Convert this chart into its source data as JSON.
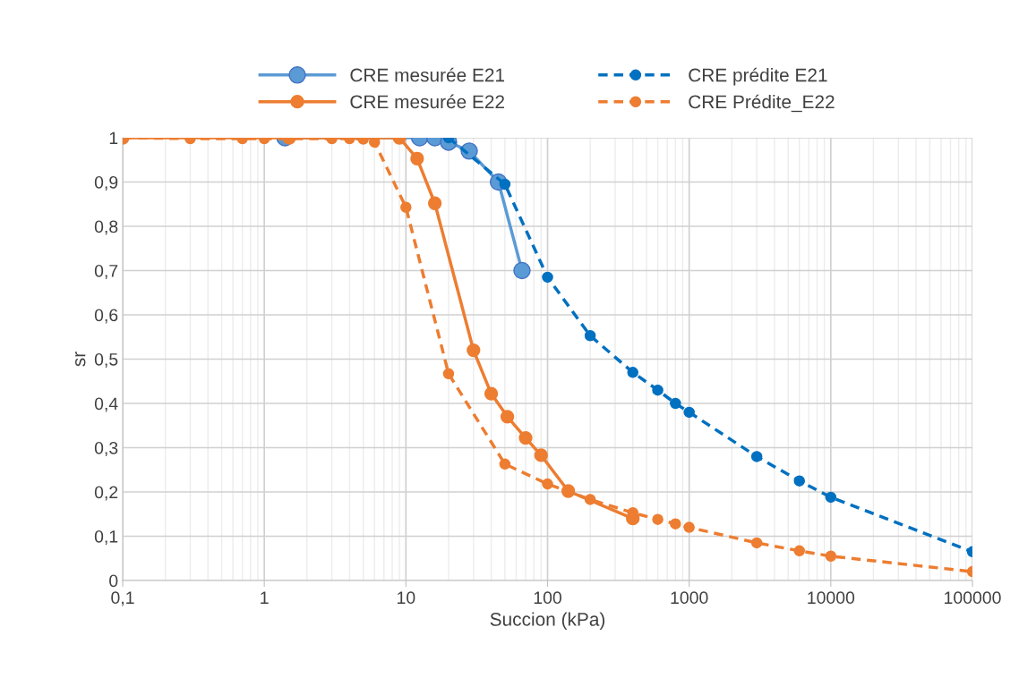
{
  "chart_data": {
    "type": "line",
    "xlabel": "Succion (kPa)",
    "ylabel": "sr",
    "log": "x",
    "grid": true,
    "legend": "top",
    "marker": "circle",
    "xlim": [
      0.1,
      100000
    ],
    "xticks": [
      {
        "value": 0.1,
        "label": "0,1"
      },
      1,
      10,
      100,
      1000,
      10000,
      100000
    ],
    "ylim": [
      0,
      1
    ],
    "yticks": [
      0,
      {
        "value": 0.1,
        "label": "0,1"
      },
      {
        "value": 0.2,
        "label": "0,2"
      },
      {
        "value": 0.3,
        "label": "0,3"
      },
      {
        "value": 0.4,
        "label": "0,4"
      },
      {
        "value": 0.5,
        "label": "0,5"
      },
      {
        "value": 0.6,
        "label": "0,6"
      },
      {
        "value": 0.7,
        "label": "0,7"
      },
      {
        "value": 0.8,
        "label": "0,8"
      },
      {
        "value": 0.9,
        "label": "0,9"
      },
      1
    ],
    "series": [
      {
        "name": "CRE mesurée E21",
        "color": "#5b9bd5",
        "line_style": "solid",
        "x": [
          1.4,
          12.5,
          16,
          20,
          28,
          45,
          66
        ],
        "values": [
          1,
          1,
          1,
          0.99,
          0.97,
          0.9,
          0.7
        ]
      },
      {
        "name": "CRE prédite E21",
        "color": "#0070c0",
        "line_style": "dashed",
        "x": [
          20,
          50,
          100,
          200,
          400,
          600,
          800,
          1000,
          3000,
          6000,
          10000,
          100000
        ],
        "values": [
          1,
          0.895,
          0.685,
          0.553,
          0.47,
          0.43,
          0.4,
          0.38,
          0.28,
          0.225,
          0.188,
          0.065
        ]
      },
      {
        "name": "CRE mesurée E22",
        "color": "#ed7d31",
        "line_style": "solid",
        "x": [
          0.1,
          1.5,
          9,
          12,
          16,
          30,
          40,
          52,
          70,
          90,
          140,
          400
        ],
        "values": [
          1,
          1,
          1,
          0.953,
          0.852,
          0.52,
          0.422,
          0.37,
          0.322,
          0.283,
          0.202,
          0.14
        ]
      },
      {
        "name": "CRE Prédite_E22",
        "color": "#ed7d31",
        "line_style": "dashed",
        "x": [
          0.1,
          0.3,
          0.7,
          1,
          3,
          4,
          5,
          6,
          10,
          20,
          50,
          100,
          200,
          400,
          600,
          800,
          1000,
          3000,
          6000,
          10000,
          100000
        ],
        "values": [
          1,
          0.998,
          0.998,
          0.998,
          0.998,
          0.998,
          0.997,
          0.99,
          0.843,
          0.467,
          0.263,
          0.218,
          0.183,
          0.153,
          0.138,
          0.128,
          0.12,
          0.085,
          0.067,
          0.055,
          0.02
        ]
      }
    ]
  }
}
